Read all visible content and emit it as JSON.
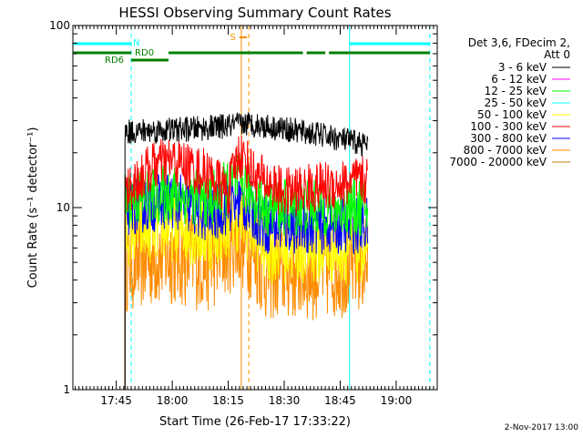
{
  "chart_data": {
    "type": "line",
    "title": "HESSI Observing Summary Count Rates",
    "xlabel": "Start Time (26-Feb-17 17:33:22)",
    "ylabel": "Count Rate (s⁻¹ detector⁻¹)",
    "yscale": "log",
    "ylim": [
      1,
      100
    ],
    "xlim": [
      "17:33:22",
      "19:11:00"
    ],
    "x_ticks": [
      "17:45",
      "18:00",
      "18:15",
      "18:30",
      "18:45",
      "19:00"
    ],
    "y_ticks": [
      "1",
      "10",
      "100"
    ],
    "grid": false,
    "legend": {
      "placement": "right",
      "header": [
        "Det 3,6, FDecim 2,",
        "Att 0"
      ],
      "entries": [
        {
          "name": "3 - 6 keV",
          "color": "#000000"
        },
        {
          "name": "6 - 12 keV",
          "color": "#ff00ff"
        },
        {
          "name": "12 - 25 keV",
          "color": "#00ff00"
        },
        {
          "name": "25 - 50 keV",
          "color": "#00ffff"
        },
        {
          "name": "50 - 100 keV",
          "color": "#ffff00"
        },
        {
          "name": "100 - 300 keV",
          "color": "#ff0000"
        },
        {
          "name": "300 - 800 keV",
          "color": "#0000ff"
        },
        {
          "name": "800 - 7000 keV",
          "color": "#ff8c00"
        },
        {
          "name": "7000 - 20000 keV",
          "color": "#b8860b"
        }
      ]
    },
    "data_window": {
      "start": "17:47:20",
      "end": "18:52:30"
    },
    "series": [
      {
        "name": "3 - 6 keV",
        "color": "#000000",
        "x": [
          "17:47:20",
          "18:05",
          "18:15",
          "18:20",
          "18:30",
          "18:40",
          "18:52:30"
        ],
        "y": [
          26,
          27,
          28,
          29,
          27,
          25,
          22
        ]
      },
      {
        "name": "100 - 300 keV",
        "color": "#ff0000",
        "x": [
          "17:47:20",
          "17:55",
          "18:00",
          "18:10",
          "18:15",
          "18:18",
          "18:22",
          "18:30",
          "18:40",
          "18:52:30"
        ],
        "y": [
          12,
          17,
          18,
          15,
          12,
          20,
          15,
          12,
          13,
          14
        ]
      },
      {
        "name": "12 - 25 keV",
        "color": "#00ff00",
        "x": [
          "17:47:20",
          "18:00",
          "18:10",
          "18:18",
          "18:25",
          "18:40",
          "18:52:30"
        ],
        "y": [
          11,
          12,
          11,
          14,
          10,
          10,
          10
        ]
      },
      {
        "name": "300 - 800 keV",
        "color": "#0000ff",
        "x": [
          "17:47:20",
          "18:00",
          "18:10",
          "18:18",
          "18:25",
          "18:40",
          "18:52:30"
        ],
        "y": [
          10,
          11,
          9,
          11,
          8,
          8,
          8
        ]
      },
      {
        "name": "50 - 100 keV",
        "color": "#ffff00",
        "x": [
          "17:47:20",
          "18:00",
          "18:10",
          "18:18",
          "18:25",
          "18:40",
          "18:52:30"
        ],
        "y": [
          7.5,
          8,
          7,
          9,
          6,
          6,
          6
        ]
      },
      {
        "name": "800 - 7000 keV",
        "color": "#ff8c00",
        "x": [
          "17:47:20",
          "18:00",
          "18:10",
          "18:18",
          "18:25",
          "18:40",
          "18:52:30"
        ],
        "y": [
          5,
          5.5,
          5,
          7,
          4.5,
          4.5,
          5
        ]
      }
    ],
    "flags": [
      {
        "label": "N",
        "color": "#00ffff",
        "segments": [
          [
            "17:33:22",
            "17:49:00"
          ],
          [
            "18:47:30",
            "19:09:00"
          ]
        ]
      },
      {
        "label": "RD0",
        "color": "#008000",
        "segments": [
          [
            "17:33:22",
            "17:49:00"
          ],
          [
            "17:59:00",
            "18:35:00"
          ],
          [
            "18:36:00",
            "18:41:00"
          ],
          [
            "18:42:00",
            "19:09:00"
          ]
        ]
      },
      {
        "label": "RD6",
        "color": "#008000",
        "segments": [
          [
            "17:49:00",
            "17:59:00"
          ]
        ]
      },
      {
        "label": "S",
        "color": "#ff8c00",
        "segments": [
          [
            "18:18:00",
            "18:20:00"
          ]
        ]
      }
    ],
    "markers": [
      {
        "time": "17:49:00",
        "color": "#00ffff",
        "style": "dashed"
      },
      {
        "time": "18:47:30",
        "color": "#00ffff",
        "style": "solid"
      },
      {
        "time": "19:09:00",
        "color": "#00ffff",
        "style": "dashed"
      },
      {
        "time": "18:18:30",
        "color": "#ff8c00",
        "style": "solid"
      },
      {
        "time": "18:20:30",
        "color": "#ff8c00",
        "style": "dashed"
      }
    ]
  },
  "footer": {
    "timestamp": "2-Nov-2017 13:00"
  }
}
